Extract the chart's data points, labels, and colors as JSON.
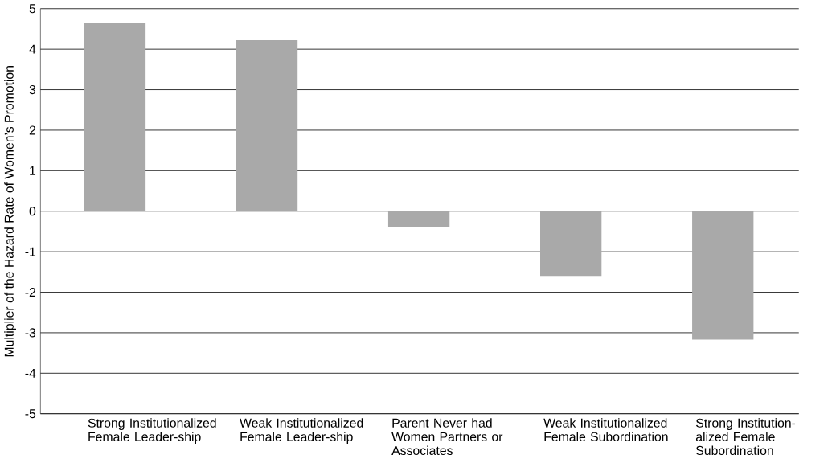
{
  "chart_data": {
    "type": "bar",
    "ylabel": "Multiplier of the Hazard Rate of Women’s Promotion",
    "categories": [
      "Strong Institutionalized Female Leader-ship",
      "Weak Institutionalized Female Leader-ship",
      "Parent Never had Women Partners or Associates",
      "Weak Institutionalized Female Subordination",
      "Strong Institution-alized Female Subordination"
    ],
    "values": [
      4.65,
      4.22,
      -0.39,
      -1.6,
      -3.17
    ],
    "color": "#a9a9a9",
    "ylim": [
      -5,
      5
    ],
    "yticks": [
      -5,
      -4,
      -3,
      -2,
      -1,
      0,
      1,
      2,
      3,
      4,
      5
    ],
    "grid": "y"
  }
}
